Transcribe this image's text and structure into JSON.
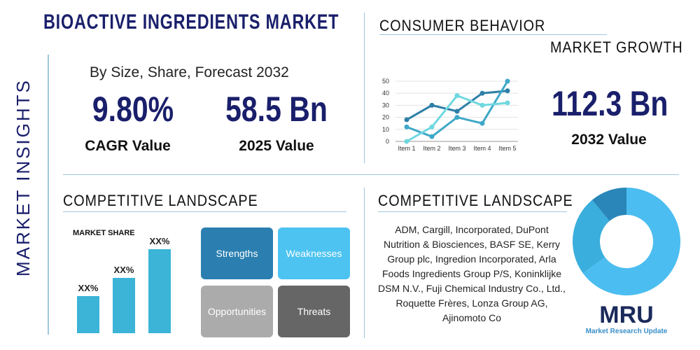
{
  "title": "BIOACTIVE INGREDIENTS MARKET",
  "side_label": "MARKET INSIGHTS",
  "subtitle": "By Size, Share, Forecast 2032",
  "cagr": {
    "value": "9.80%",
    "label": "CAGR Value"
  },
  "value_2025": {
    "value": "58.5 Bn",
    "label": "2025 Value"
  },
  "consumer_behavior": "CONSUMER BEHAVIOR",
  "market_growth": "MARKET GROWTH",
  "value_2032": {
    "value": "112.3 Bn",
    "label": "2032 Value"
  },
  "competitive_left": "COMPETITIVE LANDSCAPE",
  "competitive_right": "COMPETITIVE LANDSCAPE",
  "market_share": {
    "title": "MARKET SHARE",
    "labels": [
      "XX%",
      "XX%",
      "XX%"
    ],
    "levels": [
      0.44,
      0.66,
      1.0
    ]
  },
  "swot": {
    "strengths": "Strengths",
    "weaknesses": "Weaknesses",
    "opportunities": "Opportunities",
    "threats": "Threats"
  },
  "companies": "ADM, Cargill, Incorporated, DuPont Nutrition & Biosciences, BASF SE, Kerry Group plc, Ingredion Incorporated, Arla Foods Ingredients Group P/S, Koninklijke DSM N.V., Fuji Chemical Industry Co., Ltd., Roquette Frères, Lonza Group AG, Ajinomoto Co",
  "logo": {
    "mark": "MRU",
    "text": "Market Research Update"
  },
  "chart_data": [
    {
      "type": "line",
      "categories": [
        "Item 1",
        "Item 2",
        "Item 3",
        "Item 4",
        "Item 5"
      ],
      "yticks": [
        0,
        10,
        20,
        30,
        40,
        50
      ],
      "ylim": [
        0,
        50
      ],
      "grid": true,
      "series": [
        {
          "color": "#2e7fa6",
          "values": [
            18,
            30,
            25,
            40,
            42
          ]
        },
        {
          "color": "#3ea8c8",
          "values": [
            12,
            4,
            20,
            15,
            50
          ]
        },
        {
          "color": "#6fd8e0",
          "values": [
            0,
            12,
            38,
            30,
            32
          ]
        }
      ]
    },
    {
      "type": "pie",
      "donut": true,
      "values": [
        65,
        24,
        11
      ],
      "colors": [
        "#4bbdf0",
        "#3aaedc",
        "#2a86b8"
      ]
    }
  ]
}
